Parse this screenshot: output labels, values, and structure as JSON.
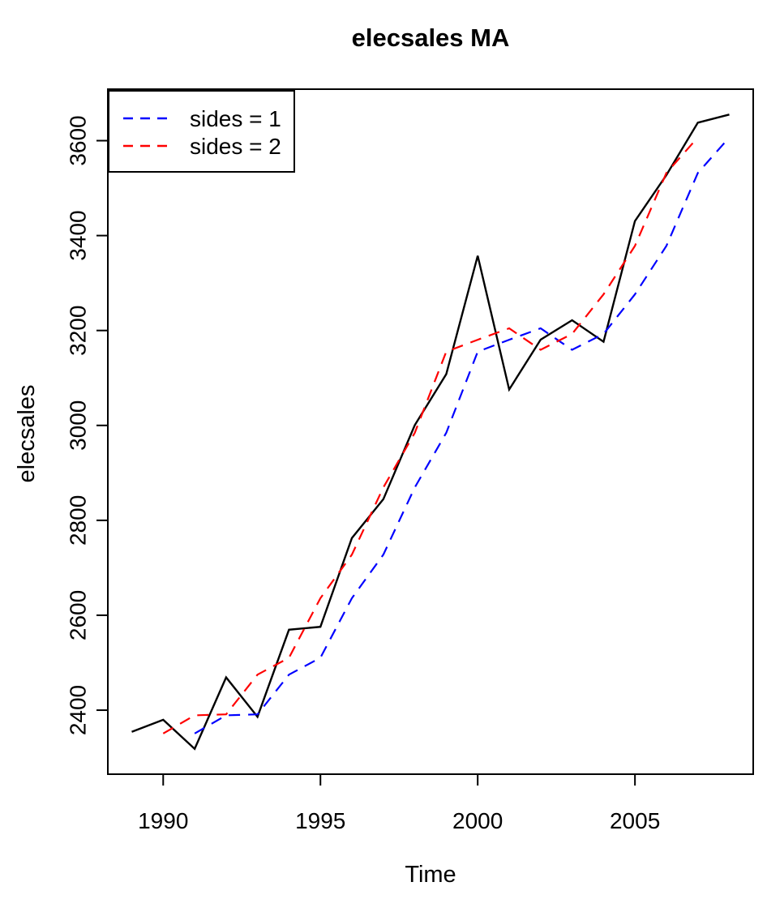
{
  "title": "elecsales MA",
  "axes": {
    "x_label": "Time",
    "y_label": "elecsales",
    "x_ticks": [
      1990,
      1995,
      2000,
      2005
    ],
    "y_ticks": [
      2400,
      2600,
      2800,
      3000,
      3200,
      3400,
      3600
    ]
  },
  "legend": {
    "position": "topleft",
    "items": [
      {
        "label": "sides = 1",
        "color": "#0000ff",
        "line_style": "dashed"
      },
      {
        "label": "sides = 2",
        "color": "#ff0000",
        "line_style": "dashed"
      }
    ]
  },
  "colors": {
    "raw_line": "#000000",
    "ma_sides1": "#0000ff",
    "ma_sides2": "#ff0000",
    "frame": "#000000",
    "background": "#ffffff"
  },
  "chart_data": {
    "type": "line",
    "title": "elecsales MA",
    "xlabel": "Time",
    "ylabel": "elecsales",
    "xlim": [
      1988.24,
      2008.76
    ],
    "ylim": [
      2265.1,
      3708.5
    ],
    "grid": false,
    "legend_position": "topleft",
    "x_ticks": [
      1990,
      1995,
      2000,
      2005
    ],
    "y_ticks": [
      2400,
      2600,
      2800,
      3000,
      3200,
      3400,
      3600
    ],
    "series": [
      {
        "name": "elecsales",
        "color": "#000000",
        "line_style": "solid",
        "x": [
          1989,
          1990,
          1991,
          1992,
          1993,
          1994,
          1995,
          1996,
          1997,
          1998,
          1999,
          2000,
          2001,
          2002,
          2003,
          2004,
          2005,
          2006,
          2007,
          2008
        ],
        "values": [
          2354.34,
          2379.71,
          2318.52,
          2468.99,
          2386.09,
          2569.47,
          2575.72,
          2762.72,
          2844.5,
          3000.7,
          3108.1,
          3357.5,
          3075.7,
          3180.6,
          3221.6,
          3176.2,
          3430.6,
          3527.48,
          3637.89,
          3655.0
        ]
      },
      {
        "name": "sides = 1",
        "color": "#0000ff",
        "line_style": "dashed",
        "x": [
          1991,
          1992,
          1993,
          1994,
          1995,
          1996,
          1997,
          1998,
          1999,
          2000,
          2001,
          2002,
          2003,
          2004,
          2005,
          2006,
          2007,
          2008
        ],
        "values": [
          2350.86,
          2389.07,
          2391.2,
          2474.85,
          2510.43,
          2635.97,
          2727.65,
          2869.31,
          2984.43,
          3155.43,
          3180.43,
          3204.6,
          3159.3,
          3192.8,
          3276.13,
          3378.09,
          3531.99,
          3606.79
        ]
      },
      {
        "name": "sides = 2",
        "color": "#ff0000",
        "line_style": "dashed",
        "x": [
          1990,
          1991,
          1992,
          1993,
          1994,
          1995,
          1996,
          1997,
          1998,
          1999,
          2000,
          2001,
          2002,
          2003,
          2004,
          2005,
          2006,
          2007
        ],
        "values": [
          2350.86,
          2389.07,
          2391.2,
          2474.85,
          2510.43,
          2635.97,
          2727.65,
          2869.31,
          2984.43,
          3155.43,
          3180.43,
          3204.6,
          3159.3,
          3192.8,
          3276.13,
          3378.09,
          3531.99,
          3606.79
        ]
      }
    ]
  }
}
